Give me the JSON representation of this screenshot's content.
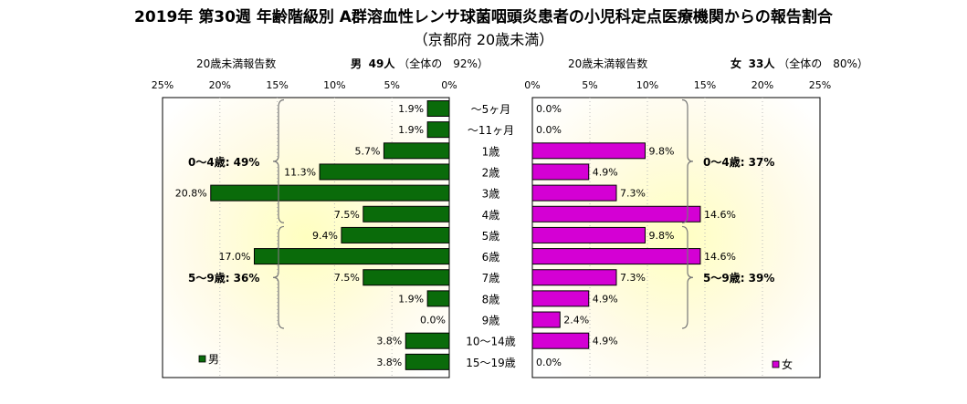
{
  "title": "2019年 第30週 年齢階級別 A群溶血性レンサ球菌咽頭炎患者の小児科定点医療機関からの報告割合",
  "subtitle": "（京都府 20歳未満）",
  "male_header": {
    "label": "20歳未満報告数",
    "sex": "男",
    "count": "49人",
    "share": "（全体の　92%）"
  },
  "female_header": {
    "label": "20歳未満報告数",
    "sex": "女",
    "count": "33人",
    "share": "（全体の　80%）"
  },
  "colors": {
    "male": "#0a6b0a",
    "female": "#d400d4",
    "bracket": "#777777"
  },
  "chart_data": {
    "type": "bar",
    "orientation": "horizontal-butterfly",
    "categories": [
      "〜5ヶ月",
      "〜11ヶ月",
      "1歳",
      "2歳",
      "3歳",
      "4歳",
      "5歳",
      "6歳",
      "7歳",
      "8歳",
      "9歳",
      "10〜14歳",
      "15〜19歳"
    ],
    "series": [
      {
        "name": "男",
        "values": [
          1.9,
          1.9,
          5.7,
          11.3,
          20.8,
          7.5,
          9.4,
          17.0,
          7.5,
          1.9,
          0.0,
          3.8,
          3.8
        ]
      },
      {
        "name": "女",
        "values": [
          0.0,
          0.0,
          9.8,
          4.9,
          7.3,
          14.6,
          9.8,
          14.6,
          7.3,
          4.9,
          2.4,
          4.9,
          0.0
        ]
      }
    ],
    "data_labels": {
      "male": [
        "1.9%",
        "1.9%",
        "5.7%",
        "11.3%",
        "20.8%",
        "7.5%",
        "9.4%",
        "17.0%",
        "7.5%",
        "1.9%",
        "0.0%",
        "3.8%",
        "3.8%"
      ],
      "female": [
        "0.0%",
        "0.0%",
        "9.8%",
        "4.9%",
        "7.3%",
        "14.6%",
        "9.8%",
        "14.6%",
        "7.3%",
        "4.9%",
        "2.4%",
        "4.9%",
        "0.0%"
      ]
    },
    "xlim": [
      0,
      25
    ],
    "ticks": [
      "0%",
      "5%",
      "10%",
      "15%",
      "20%",
      "25%"
    ],
    "male_groups": [
      {
        "label": "0〜4歳: 49%",
        "from": 0,
        "to": 5
      },
      {
        "label": "5〜9歳: 36%",
        "from": 6,
        "to": 10
      }
    ],
    "female_groups": [
      {
        "label": "0〜4歳: 37%",
        "from": 0,
        "to": 5
      },
      {
        "label": "5〜9歳: 39%",
        "from": 6,
        "to": 10
      }
    ],
    "legend": {
      "male": "男",
      "female": "女"
    }
  }
}
